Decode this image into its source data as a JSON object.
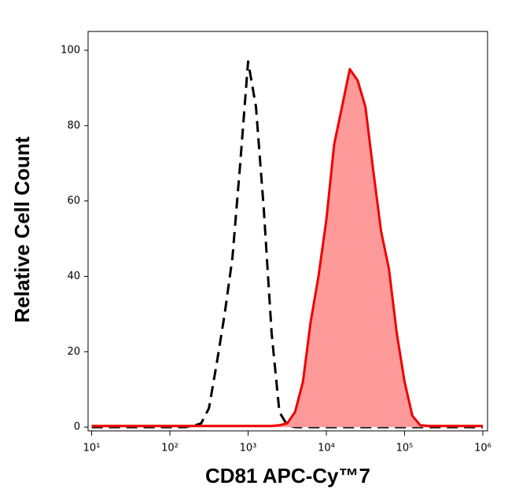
{
  "chart_data": {
    "type": "histogram-overlay",
    "x_label": "CD81 APC-Cy™7",
    "y_label": "Relative Cell Count",
    "x_scale": "log",
    "xlim": [
      9,
      1150000
    ],
    "xticks": [
      {
        "value": 10,
        "label": "10¹"
      },
      {
        "value": 100,
        "label": "10²"
      },
      {
        "value": 1000,
        "label": "10³"
      },
      {
        "value": 10000,
        "label": "10⁴"
      },
      {
        "value": 100000,
        "label": "10⁵"
      },
      {
        "value": 1000000,
        "label": "10⁶"
      }
    ],
    "ylim": [
      -1,
      105
    ],
    "yticks": [
      0,
      20,
      40,
      60,
      80,
      100
    ],
    "x": [
      10,
      12.6,
      15.8,
      20,
      25.1,
      31.6,
      39.8,
      50.1,
      63.1,
      79.4,
      100,
      126,
      158,
      200,
      251,
      316,
      398,
      501,
      631,
      794,
      1000,
      1259,
      1585,
      1995,
      2512,
      3162,
      3981,
      5012,
      6310,
      7943,
      10000,
      12589,
      15849,
      19953,
      25119,
      31623,
      39811,
      50119,
      63096,
      79433,
      100000,
      125893,
      158489,
      199526,
      251189,
      316228,
      398107,
      501187,
      630957,
      794328,
      1000000
    ],
    "series": [
      {
        "color": "#000000",
        "dash": true,
        "fill": null,
        "values": [
          0,
          0,
          0,
          0,
          0,
          0,
          0,
          0,
          0,
          0,
          0,
          0,
          0,
          0.3,
          1,
          5,
          17,
          30,
          45,
          70,
          97,
          85,
          58,
          25,
          4,
          0.5,
          0,
          0,
          0,
          0,
          0,
          0,
          0,
          0,
          0,
          0,
          0,
          0,
          0,
          0,
          0,
          0,
          0,
          0,
          0,
          0,
          0,
          0,
          0,
          0,
          0
        ]
      },
      {
        "color": "#ee0000",
        "dash": false,
        "fill": "#ff9a9a",
        "values": [
          0.3,
          0.3,
          0.3,
          0.3,
          0.3,
          0.3,
          0.3,
          0.3,
          0.3,
          0.3,
          0.3,
          0.3,
          0.3,
          0.3,
          0.3,
          0.3,
          0.3,
          0.3,
          0.3,
          0.3,
          0.3,
          0.3,
          0.3,
          0.3,
          0.5,
          1,
          4,
          12,
          28,
          40,
          55,
          75,
          85,
          95,
          92,
          85,
          68,
          52,
          42,
          25,
          12,
          3,
          0.5,
          0.3,
          0.3,
          0.3,
          0.3,
          0.3,
          0.3,
          0.3,
          0.3
        ]
      }
    ]
  }
}
